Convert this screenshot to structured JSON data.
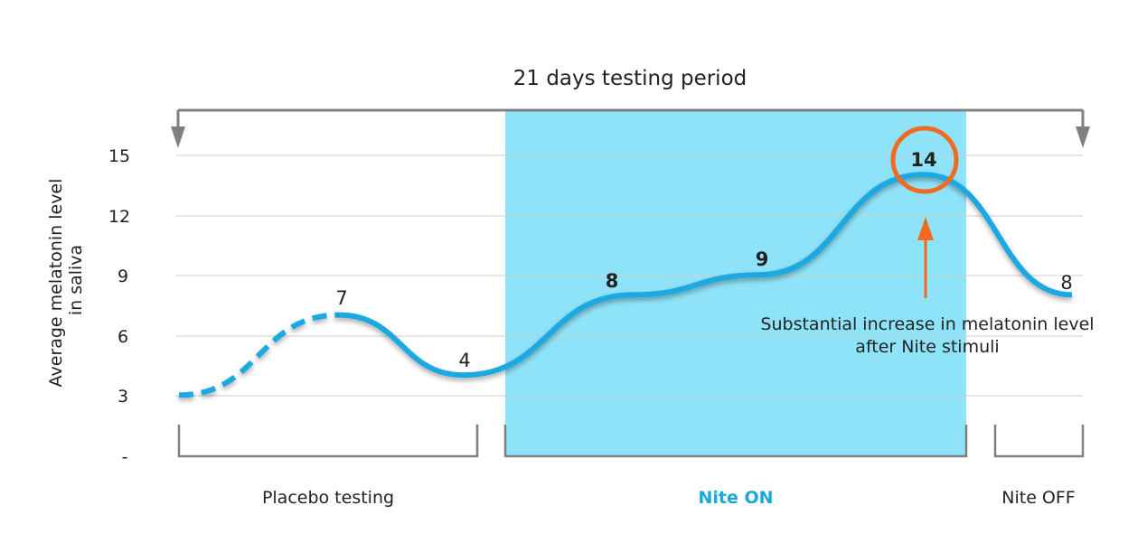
{
  "chart_data": {
    "type": "line",
    "title": "21 days testing period",
    "ylabel": [
      "Average melatonin level",
      "in saliva"
    ],
    "y_ticks": [
      "-",
      "3",
      "6",
      "9",
      "12",
      "15"
    ],
    "ylim": [
      0,
      15
    ],
    "grid": true,
    "phases": [
      {
        "name": "Placebo testing",
        "highlight": false
      },
      {
        "name": "Nite ON",
        "highlight": true
      },
      {
        "name": "Nite OFF",
        "highlight": false
      }
    ],
    "points": [
      {
        "label": "",
        "value": 3,
        "bold": false
      },
      {
        "label": "7",
        "value": 7,
        "bold": false
      },
      {
        "label": "4",
        "value": 4,
        "bold": false
      },
      {
        "label": "8",
        "value": 8,
        "bold": true
      },
      {
        "label": "9",
        "value": 9,
        "bold": true
      },
      {
        "label": "14",
        "value": 14,
        "bold": true
      },
      {
        "label": "8",
        "value": 8,
        "bold": false
      }
    ],
    "annotation": [
      "Substantial increase in melatonin level",
      "after Nite stimuli"
    ],
    "colors": {
      "line": "#1ba8e0",
      "highlight": "#8fe3f9",
      "highlight_text": "#19a9d6",
      "accent": "#f26a21",
      "grid": "#cccccc",
      "bracket": "#808080"
    }
  }
}
